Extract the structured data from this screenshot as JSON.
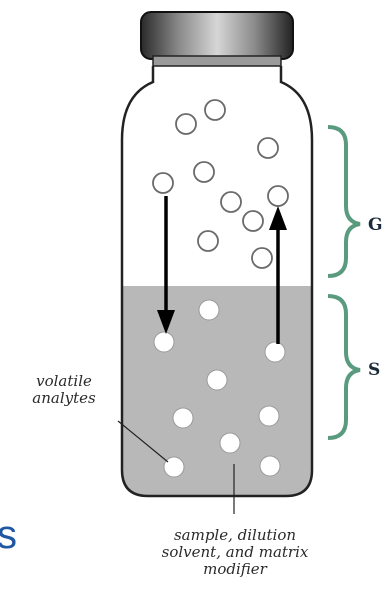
{
  "labels": {
    "volatile_analytes": "volatile\nanalytes",
    "sample_description": "sample, dilution\nsolvent, and matrix\nmodifier",
    "gas_phase_letter": "G",
    "sample_phase_letter": "S",
    "left_edge_fragment": "s"
  },
  "colors": {
    "liquid": "#b8b8b8",
    "vial_outline": "#222222",
    "brace": "#5a9b80",
    "cap_dark": "#2a2a2a",
    "cap_light": "#bdbdbd",
    "blue_text": "#1f57a3"
  }
}
